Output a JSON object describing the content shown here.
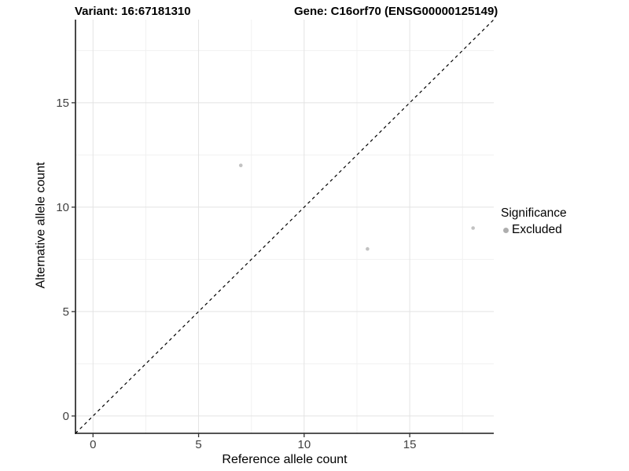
{
  "chart_data": {
    "type": "scatter",
    "titles": {
      "left": "Variant: 16:67181310",
      "right": "Gene: C16orf70 (ENSG00000125149)"
    },
    "xlabel": "Reference allele count",
    "ylabel": "Alternative allele count",
    "x_ticks": [
      0,
      5,
      10,
      15
    ],
    "y_ticks": [
      0,
      5,
      10,
      15
    ],
    "x_minor": [
      2.5,
      7.5,
      12.5,
      17.5
    ],
    "y_minor": [
      2.5,
      7.5,
      12.5,
      17.5
    ],
    "xlim": [
      -0.83,
      18.98
    ],
    "ylim": [
      -0.83,
      18.98
    ],
    "grid": true,
    "points": [
      {
        "x": 7,
        "y": 12,
        "significance": "Excluded"
      },
      {
        "x": 13,
        "y": 8,
        "significance": "Excluded"
      },
      {
        "x": 18,
        "y": 9,
        "significance": "Excluded"
      }
    ],
    "identity_line": {
      "style": "dashed",
      "from": [
        -0.83,
        -0.83
      ],
      "to": [
        18.98,
        18.98
      ]
    },
    "legend": {
      "position": "right",
      "title": "Significance",
      "items": [
        {
          "label": "Excluded",
          "color": "#aeaeae"
        }
      ]
    },
    "colors": {
      "point": "#c2c2c2",
      "grid_major": "#e3e3e3",
      "grid_minor": "#f1f1f1",
      "axis_line": "#1a1a1a",
      "tick_mark": "#333333",
      "tick_label": "#404040",
      "dashed_line": "#000000",
      "background": "#ffffff"
    }
  }
}
